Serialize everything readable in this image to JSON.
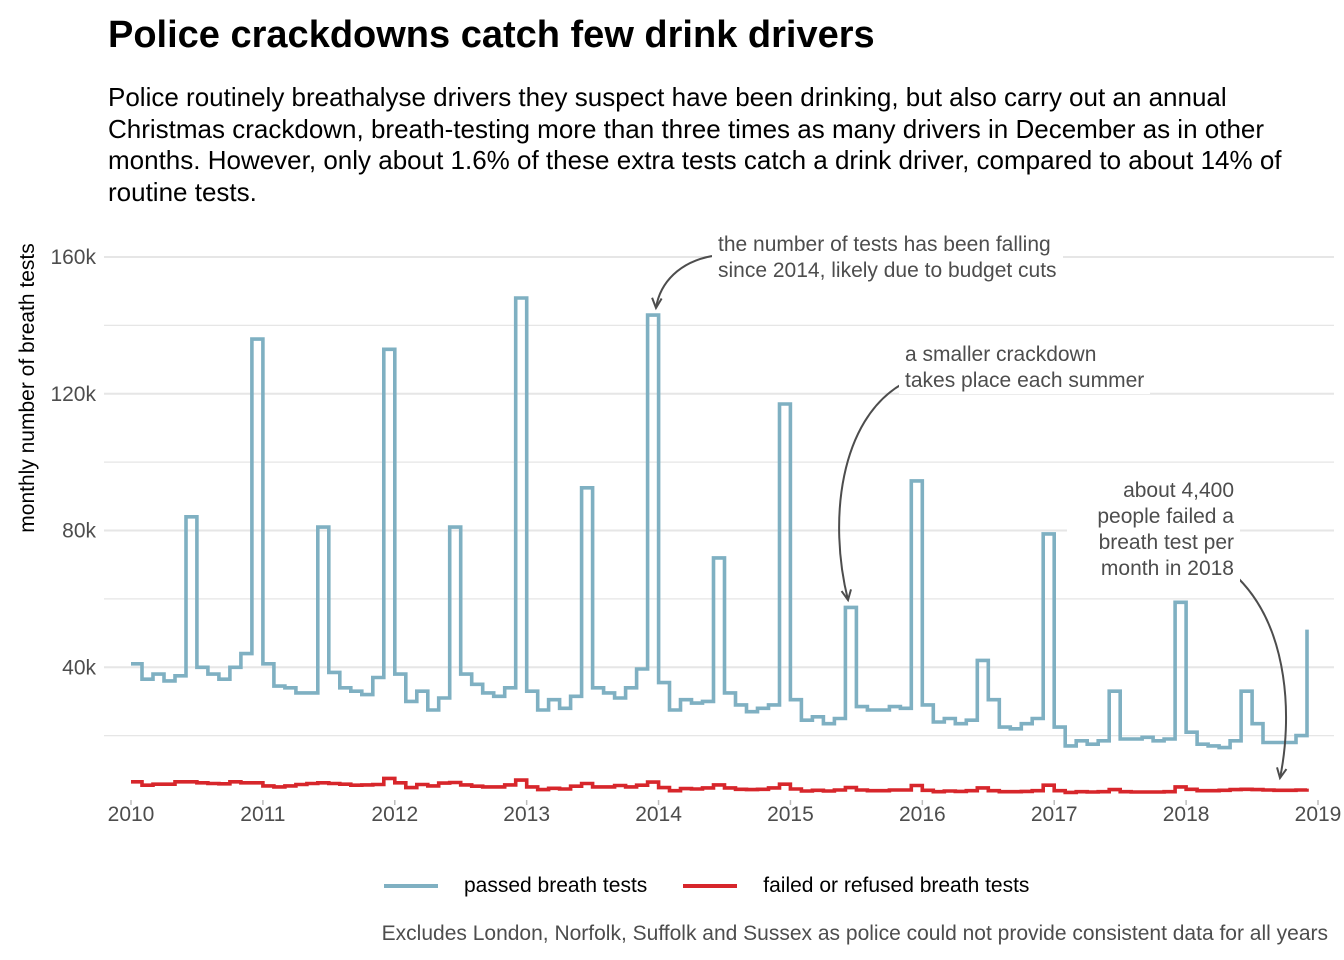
{
  "title": "Police crackdowns catch few drink drivers",
  "subtitle": "Police routinely breathalyse drivers they suspect have been drinking, but also carry out an annual Christmas crackdown, breath-testing more than three times as many drivers in December as in other months. However, only about 1.6% of these extra tests catch a drink driver, compared to about 14% of routine tests.",
  "caption": "Excludes London, Norfolk, Suffolk and Sussex as police could not provide consistent data for all years",
  "annotations": {
    "falling": [
      "the number of tests has been falling",
      "since 2014, likely due to budget cuts"
    ],
    "summer": [
      "a smaller crackdown",
      "takes place each summer"
    ],
    "failed": [
      "about 4,400",
      "people failed a",
      "breath test per",
      "month in 2018"
    ]
  },
  "legend": {
    "passed": "passed breath tests",
    "failed": "failed or refused breath tests"
  },
  "colors": {
    "passed": "#7fb0c2",
    "failed": "#d7262b",
    "grid": "#e6e6e6",
    "axis_text": "#4d4d4d",
    "annotation": "#4d4d4d"
  },
  "chart_data": {
    "type": "line",
    "step": true,
    "ylabel": "monthly number of breath tests",
    "xlabel": "",
    "xlim": [
      2010,
      2019
    ],
    "ylim": [
      0,
      160000
    ],
    "x_ticks": [
      "2010",
      "2011",
      "2012",
      "2013",
      "2014",
      "2015",
      "2016",
      "2017",
      "2018",
      "2019"
    ],
    "y_ticks": [
      "40k",
      "80k",
      "120k",
      "160k"
    ],
    "legend_position": "bottom",
    "x_start": "2010-01",
    "series": [
      {
        "name": "passed breath tests",
        "values": [
          41000,
          36500,
          38000,
          36000,
          37500,
          84000,
          40000,
          38000,
          36500,
          40000,
          44000,
          136000,
          41000,
          34500,
          34000,
          32500,
          32500,
          81000,
          38500,
          34000,
          33000,
          32000,
          37000,
          133000,
          38000,
          30000,
          33000,
          27500,
          31000,
          81000,
          38000,
          35000,
          32500,
          31500,
          34000,
          148000,
          33000,
          27500,
          30500,
          28000,
          31500,
          92500,
          34000,
          32500,
          31000,
          34000,
          39500,
          143000,
          35500,
          27500,
          30500,
          29500,
          30000,
          72000,
          32500,
          29000,
          27000,
          28000,
          29000,
          117000,
          30500,
          24500,
          25500,
          23500,
          25000,
          57500,
          28500,
          27500,
          27500,
          28500,
          28000,
          94500,
          29000,
          24000,
          25000,
          23500,
          24500,
          42000,
          30500,
          22500,
          22000,
          23500,
          25000,
          79000,
          22500,
          17000,
          18500,
          17500,
          18500,
          33000,
          19000,
          19000,
          19500,
          18500,
          19000,
          59000,
          21000,
          17500,
          17000,
          16500,
          18500,
          33000,
          23500,
          18000,
          18000,
          18000,
          20000,
          51000
        ]
      },
      {
        "name": "failed or refused breath tests",
        "values": [
          6500,
          5500,
          5800,
          5800,
          6500,
          6500,
          6200,
          6000,
          5900,
          6500,
          6200,
          6200,
          5300,
          5000,
          5300,
          5700,
          6000,
          6200,
          6000,
          5800,
          5500,
          5600,
          5700,
          7500,
          6200,
          4800,
          5700,
          5300,
          6100,
          6300,
          5600,
          5200,
          5000,
          5000,
          5600,
          7000,
          5000,
          4200,
          4600,
          4400,
          5200,
          6000,
          5000,
          5000,
          5400,
          5000,
          5500,
          6400,
          4800,
          3900,
          4500,
          4400,
          4700,
          5600,
          4700,
          4300,
          4200,
          4300,
          4700,
          5800,
          4400,
          3800,
          4000,
          3800,
          4100,
          4800,
          4100,
          3900,
          3900,
          4100,
          4100,
          5400,
          4000,
          3600,
          3800,
          3700,
          3900,
          4700,
          3900,
          3600,
          3600,
          3700,
          3900,
          5500,
          3900,
          3400,
          3600,
          3500,
          3600,
          4200,
          3600,
          3500,
          3500,
          3500,
          3600,
          5000,
          4300,
          3900,
          3900,
          4000,
          4200,
          4300,
          4200,
          4100,
          4000,
          4000,
          4100,
          4500
        ]
      }
    ]
  }
}
